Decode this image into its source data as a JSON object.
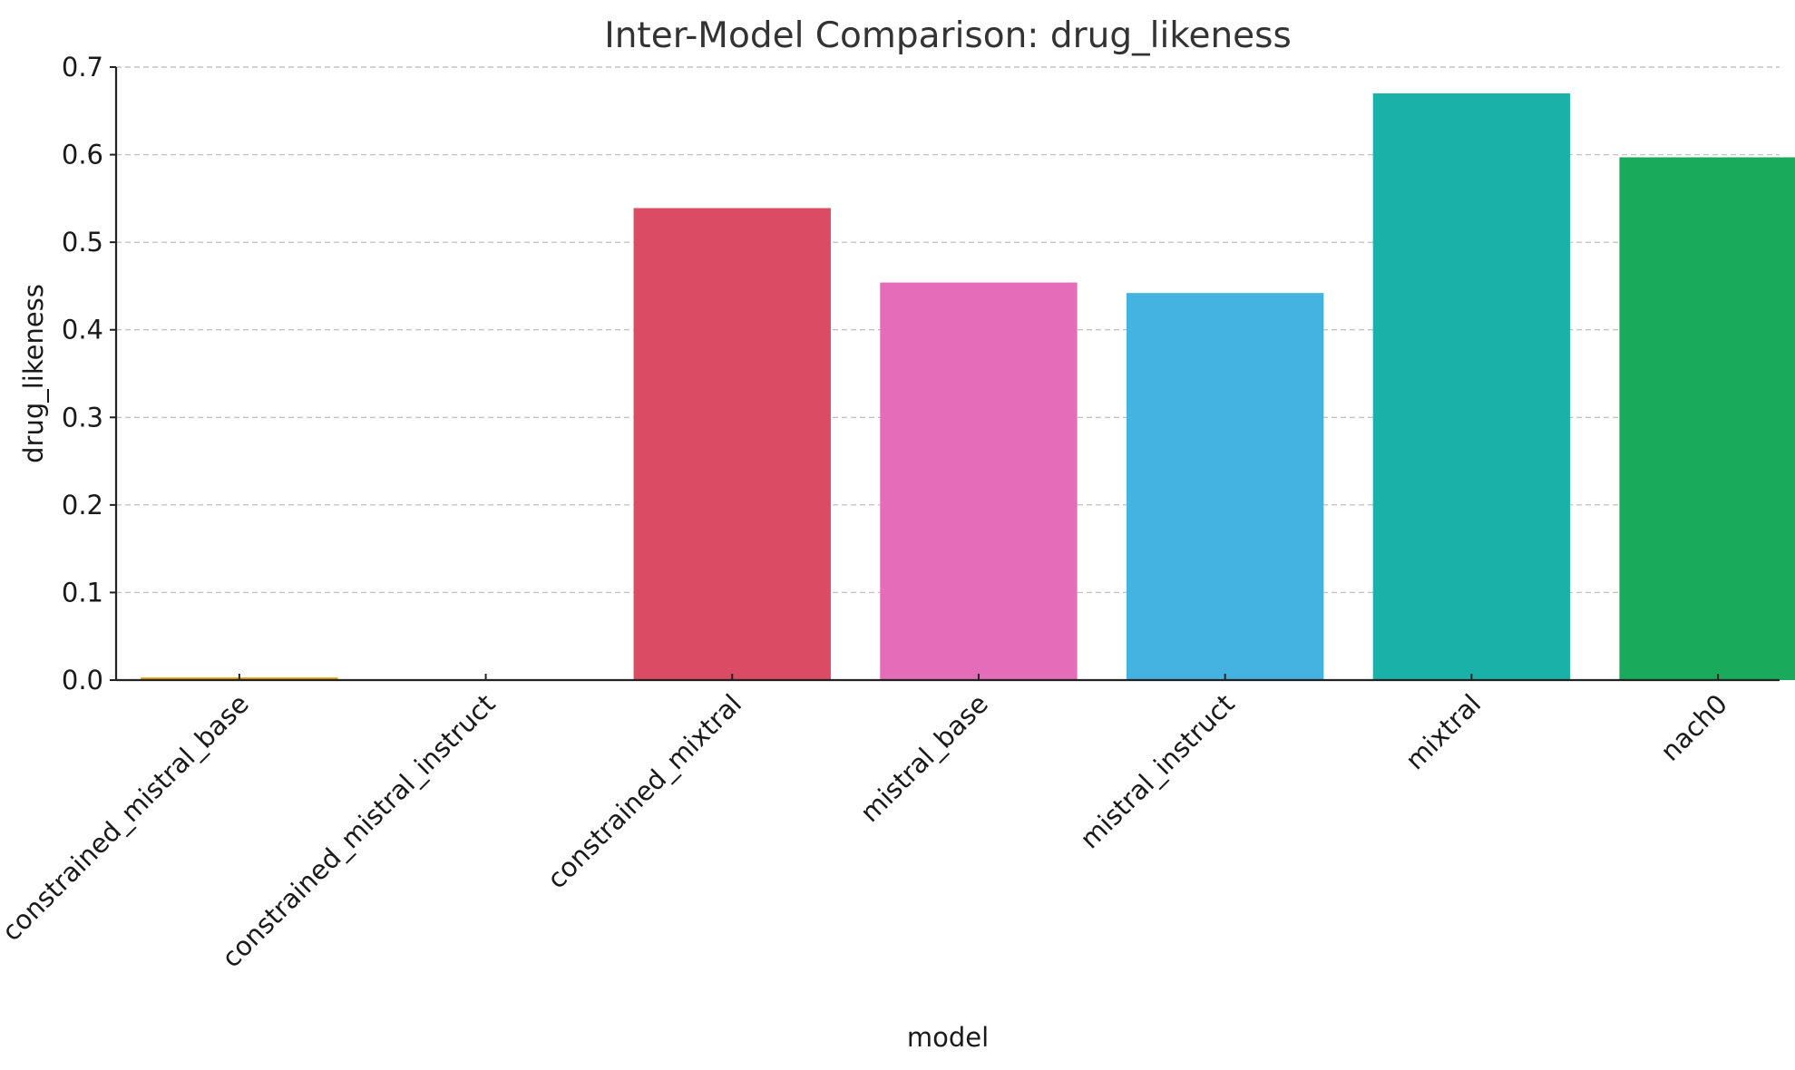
{
  "chart_data": {
    "type": "bar",
    "title": "Inter-Model Comparison: drug_likeness",
    "xlabel": "model",
    "ylabel": "drug_likeness",
    "categories": [
      "constrained_mistral_base",
      "constrained_mistral_instruct",
      "constrained_mixtral",
      "mistral_base",
      "mistral_instruct",
      "mixtral",
      "nach0"
    ],
    "values": [
      0.003,
      0.0,
      0.539,
      0.454,
      0.442,
      0.67,
      0.597
    ],
    "colors": [
      "#e69f00",
      "#56b4e9",
      "#dc4b64",
      "#e46cb9",
      "#44b3e2",
      "#1ab2a8",
      "#1aaa5c"
    ],
    "ylim": [
      0,
      0.7
    ],
    "yticks": [
      "0.0",
      "0.1",
      "0.2",
      "0.3",
      "0.4",
      "0.5",
      "0.6",
      "0.7"
    ],
    "grid": "y-dashed",
    "legend": "none"
  }
}
